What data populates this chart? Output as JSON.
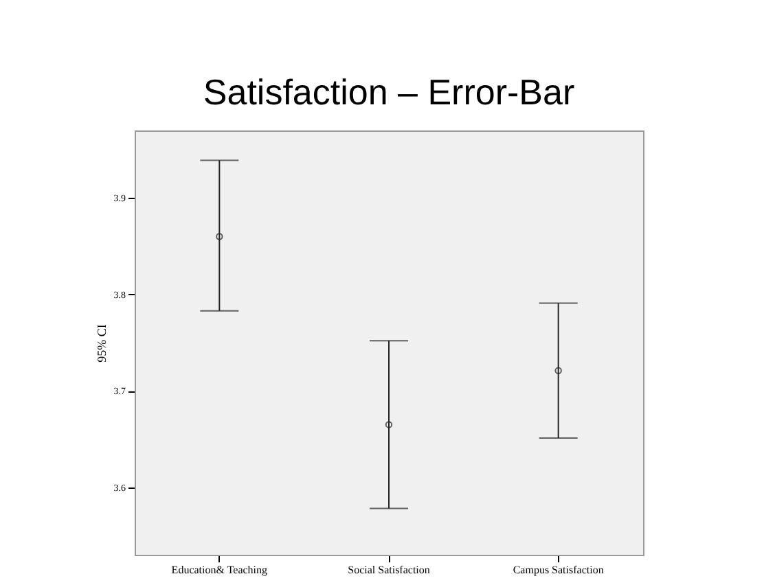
{
  "chart_data": {
    "type": "scatter",
    "title": "Satisfaction – Error-Bar",
    "ylabel": "95% CI",
    "categories": [
      "Education& Teaching",
      "Social Satisfaction",
      "Campus Satisfaction"
    ],
    "values": [
      3.86,
      3.665,
      3.721
    ],
    "errors": [
      [
        3.783,
        3.939
      ],
      [
        3.578,
        3.752
      ],
      [
        3.651,
        3.791
      ]
    ],
    "ylim": [
      3.53,
      3.97
    ],
    "yticks": [
      3.6,
      3.7,
      3.8,
      3.9
    ],
    "marker": "circle",
    "grid": false
  }
}
